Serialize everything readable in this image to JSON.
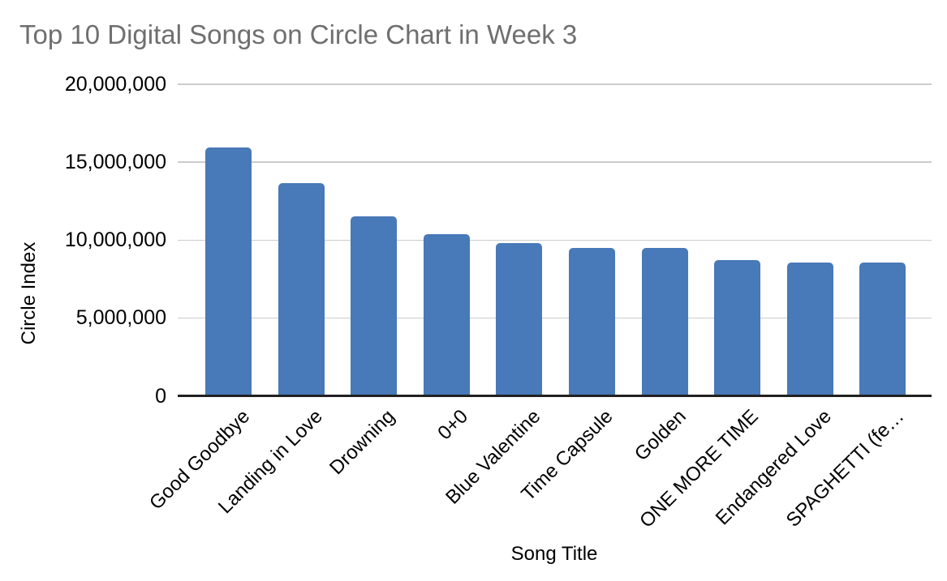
{
  "chart_data": {
    "type": "bar",
    "title": "Top 10 Digital Songs on Circle Chart in Week 3",
    "xlabel": "Song Title",
    "ylabel": "Circle Index",
    "categories": [
      "Good Goodbye",
      "Landing in Love",
      "Drowning",
      "0+0",
      "Blue Valentine",
      "Time Capsule",
      "Golden",
      "ONE MORE TIME",
      "Endangered Love",
      "SPAGHETTI (fe…"
    ],
    "values": [
      15950000,
      13650000,
      11500000,
      10360000,
      9790000,
      9480000,
      9510000,
      8730000,
      8560000,
      8560000
    ],
    "series_name": "Circle Index",
    "ylim": [
      0,
      20000000
    ],
    "yticks": [
      {
        "value": 0,
        "label": "0"
      },
      {
        "value": 5000000,
        "label": "5,000,000"
      },
      {
        "value": 10000000,
        "label": "10,000,000"
      },
      {
        "value": 15000000,
        "label": "15,000,000"
      },
      {
        "value": 20000000,
        "label": "20,000,000"
      }
    ],
    "grid": true,
    "legend": "none",
    "colors": {
      "bar": "#4879b8",
      "gridline": "#cccccc",
      "axis_line": "#212121",
      "title_text": "#6f6f6f",
      "label_text": "#000000",
      "background": "#ffffff"
    }
  }
}
